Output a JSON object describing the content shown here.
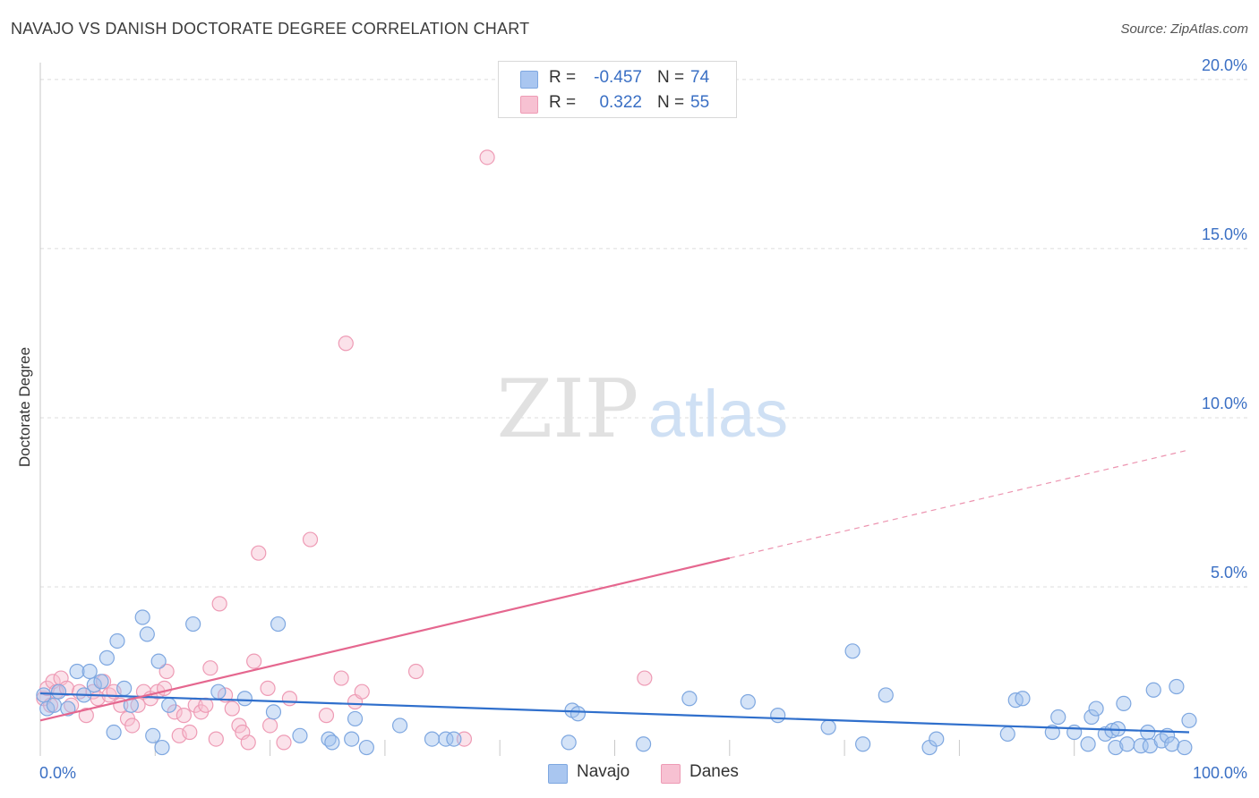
{
  "header": {
    "title": "NAVAJO VS DANISH DOCTORATE DEGREE CORRELATION CHART",
    "source": "Source: ZipAtlas.com"
  },
  "watermark": {
    "zip": "ZIP",
    "atlas": "atlas"
  },
  "legend": {
    "rows": [
      {
        "r_label": "R =",
        "r_value": "-0.457",
        "n_label": "N =",
        "n_value": "74",
        "swatch_fill": "#a9c6f0",
        "swatch_stroke": "#7ea7e0"
      },
      {
        "r_label": "R =",
        "r_value": "0.322",
        "n_label": "N =",
        "n_value": "55",
        "swatch_fill": "#f7c1d2",
        "swatch_stroke": "#ee9bb5"
      }
    ]
  },
  "bottom_legend": [
    {
      "label": "Navajo",
      "fill": "#a9c6f0",
      "stroke": "#7ea7e0"
    },
    {
      "label": "Danes",
      "fill": "#f7c1d2",
      "stroke": "#ee9bb5"
    }
  ],
  "colors": {
    "navajo_fill": "rgba(160,192,238,0.45)",
    "navajo_stroke": "#7ea7e0",
    "navajo_line": "#2f6fcc",
    "danes_fill": "rgba(247,190,208,0.45)",
    "danes_stroke": "#ee9bb5",
    "danes_line": "#e5678f",
    "tick_label": "#3a6fc4",
    "grid": "#dcdcdc"
  },
  "chart_data": {
    "type": "scatter",
    "title": "NAVAJO VS DANISH DOCTORATE DEGREE CORRELATION CHART",
    "xlabel": "",
    "ylabel": "Doctorate Degree",
    "xlim": [
      0,
      100
    ],
    "ylim": [
      0,
      20.5
    ],
    "x_tick_labels": [
      {
        "value": 0,
        "label": "0.0%"
      },
      {
        "value": 100,
        "label": "100.0%"
      }
    ],
    "y_ticks": [
      {
        "value": 5,
        "label": "5.0%"
      },
      {
        "value": 10,
        "label": "10.0%"
      },
      {
        "value": 15,
        "label": "15.0%"
      },
      {
        "value": 20,
        "label": "20.0%"
      }
    ],
    "x_minor_ticks": [
      10,
      20,
      30,
      40,
      50,
      60,
      70,
      80,
      90
    ],
    "series": [
      {
        "name": "Navajo",
        "r": -0.457,
        "n": 74,
        "trend": {
          "x0": 0,
          "y0": 1.85,
          "x1": 100,
          "y1": 0.7,
          "solid_until": 100
        },
        "points": [
          [
            0.3,
            1.8
          ],
          [
            0.6,
            1.4
          ],
          [
            1.2,
            1.5
          ],
          [
            1.6,
            1.9
          ],
          [
            2.4,
            1.4
          ],
          [
            3.2,
            2.5
          ],
          [
            3.8,
            1.8
          ],
          [
            4.3,
            2.5
          ],
          [
            4.7,
            2.1
          ],
          [
            5.3,
            2.2
          ],
          [
            5.8,
            2.9
          ],
          [
            6.4,
            0.7
          ],
          [
            6.7,
            3.4
          ],
          [
            7.3,
            2.0
          ],
          [
            7.9,
            1.5
          ],
          [
            8.9,
            4.1
          ],
          [
            9.3,
            3.6
          ],
          [
            9.8,
            0.6
          ],
          [
            10.3,
            2.8
          ],
          [
            10.6,
            0.25
          ],
          [
            11.2,
            1.5
          ],
          [
            13.3,
            3.9
          ],
          [
            15.5,
            1.9
          ],
          [
            17.8,
            1.7
          ],
          [
            20.3,
            1.3
          ],
          [
            20.7,
            3.9
          ],
          [
            22.6,
            0.6
          ],
          [
            25.1,
            0.5
          ],
          [
            25.4,
            0.4
          ],
          [
            27.1,
            0.5
          ],
          [
            27.4,
            1.1
          ],
          [
            28.4,
            0.25
          ],
          [
            31.3,
            0.9
          ],
          [
            34.1,
            0.5
          ],
          [
            35.3,
            0.5
          ],
          [
            36.0,
            0.5
          ],
          [
            46.0,
            0.4
          ],
          [
            46.3,
            1.35
          ],
          [
            46.8,
            1.25
          ],
          [
            52.5,
            0.35
          ],
          [
            56.5,
            1.7
          ],
          [
            61.6,
            1.6
          ],
          [
            64.2,
            1.2
          ],
          [
            68.6,
            0.85
          ],
          [
            70.7,
            3.1
          ],
          [
            71.6,
            0.35
          ],
          [
            73.6,
            1.8
          ],
          [
            77.4,
            0.25
          ],
          [
            78.0,
            0.5
          ],
          [
            84.2,
            0.65
          ],
          [
            84.9,
            1.65
          ],
          [
            85.5,
            1.7
          ],
          [
            88.1,
            0.7
          ],
          [
            88.6,
            1.15
          ],
          [
            90.0,
            0.7
          ],
          [
            91.2,
            0.35
          ],
          [
            91.5,
            1.15
          ],
          [
            91.9,
            1.4
          ],
          [
            92.7,
            0.65
          ],
          [
            93.3,
            0.75
          ],
          [
            93.8,
            0.8
          ],
          [
            93.6,
            0.25
          ],
          [
            94.3,
            1.55
          ],
          [
            94.6,
            0.35
          ],
          [
            95.8,
            0.3
          ],
          [
            96.4,
            0.7
          ],
          [
            96.6,
            0.3
          ],
          [
            96.9,
            1.95
          ],
          [
            97.6,
            0.45
          ],
          [
            98.1,
            0.6
          ],
          [
            98.5,
            0.35
          ],
          [
            98.9,
            2.05
          ],
          [
            99.6,
            0.25
          ],
          [
            100.0,
            1.05
          ]
        ]
      },
      {
        "name": "Danes",
        "r": 0.322,
        "n": 55,
        "trend": {
          "x0": 0,
          "y0": 1.05,
          "x1": 100,
          "y1": 9.05,
          "solid_until": 60
        },
        "points": [
          [
            0.3,
            1.7
          ],
          [
            0.6,
            2.0
          ],
          [
            0.9,
            1.5
          ],
          [
            1.1,
            2.2
          ],
          [
            1.4,
            1.9
          ],
          [
            1.8,
            2.3
          ],
          [
            2.3,
            2.0
          ],
          [
            2.7,
            1.5
          ],
          [
            3.4,
            1.9
          ],
          [
            4.0,
            1.2
          ],
          [
            4.6,
            1.9
          ],
          [
            5.0,
            1.7
          ],
          [
            5.5,
            2.2
          ],
          [
            6.0,
            1.8
          ],
          [
            6.4,
            1.9
          ],
          [
            7.0,
            1.5
          ],
          [
            7.6,
            1.1
          ],
          [
            8.0,
            0.9
          ],
          [
            8.5,
            1.5
          ],
          [
            9.0,
            1.9
          ],
          [
            9.6,
            1.7
          ],
          [
            10.2,
            1.9
          ],
          [
            10.8,
            2.0
          ],
          [
            11.0,
            2.5
          ],
          [
            11.7,
            1.3
          ],
          [
            12.1,
            0.6
          ],
          [
            12.5,
            1.2
          ],
          [
            13.0,
            0.7
          ],
          [
            13.5,
            1.5
          ],
          [
            14.0,
            1.3
          ],
          [
            14.4,
            1.5
          ],
          [
            14.8,
            2.6
          ],
          [
            15.3,
            0.5
          ],
          [
            15.6,
            4.5
          ],
          [
            16.1,
            1.8
          ],
          [
            16.7,
            1.4
          ],
          [
            17.3,
            0.9
          ],
          [
            17.6,
            0.7
          ],
          [
            18.1,
            0.4
          ],
          [
            18.6,
            2.8
          ],
          [
            19.0,
            6.0
          ],
          [
            19.8,
            2.0
          ],
          [
            20.0,
            0.9
          ],
          [
            21.2,
            0.4
          ],
          [
            21.7,
            1.7
          ],
          [
            23.5,
            6.4
          ],
          [
            24.9,
            1.2
          ],
          [
            26.2,
            2.3
          ],
          [
            26.6,
            12.2
          ],
          [
            27.4,
            1.6
          ],
          [
            28.0,
            1.9
          ],
          [
            32.7,
            2.5
          ],
          [
            36.9,
            0.5
          ],
          [
            38.9,
            17.7
          ],
          [
            52.6,
            2.3
          ]
        ]
      }
    ]
  }
}
